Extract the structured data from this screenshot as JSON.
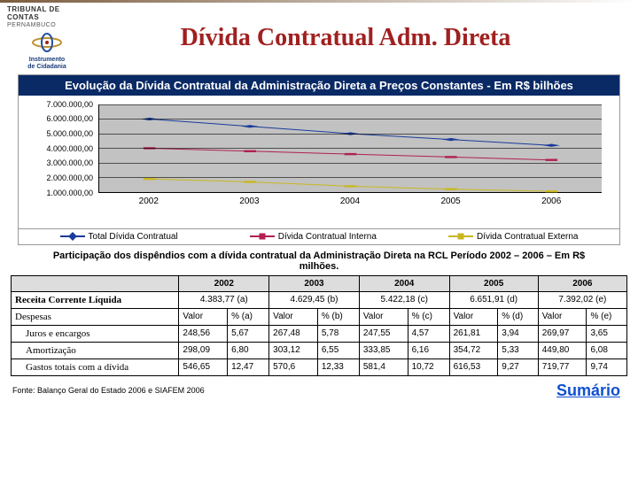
{
  "header": {
    "org_line1": "TRIBUNAL DE CONTAS",
    "org_line2": "PERNAMBUCO",
    "tagline1": "Instrumento",
    "tagline2": "de Cidadania",
    "title": "Dívida Contratual Adm. Direta"
  },
  "chart": {
    "type": "line",
    "title": "Evolução da Dívida Contratual da Administração Direta a Preços Constantes - Em R$ bilhões",
    "background_color": "#c2c2c2",
    "title_bg": "#0a2a66",
    "title_color": "#ffffff",
    "x_categories": [
      "2002",
      "2003",
      "2004",
      "2005",
      "2006"
    ],
    "y_ticks": [
      "1.000.000,00",
      "2.000.000,00",
      "3.000.000,00",
      "4.000.000,00",
      "5.000.000,00",
      "6.000.000,00",
      "7.000.000,00"
    ],
    "ylim": [
      1000000,
      7000000
    ],
    "series": [
      {
        "name": "Total Dívida Contratual",
        "color": "#1a3c9a",
        "marker": "diamond",
        "marker_color": "#1a3c9a",
        "values": [
          6000000,
          5500000,
          5000000,
          4600000,
          4200000
        ]
      },
      {
        "name": "Dívida Contratual Interna",
        "color": "#b02050",
        "marker": "square",
        "marker_color": "#b02050",
        "values": [
          4000000,
          3800000,
          3600000,
          3400000,
          3200000
        ]
      },
      {
        "name": "Dívida Contratual Externa",
        "color": "#c8b820",
        "marker": "triangle",
        "marker_color": "#c8b820",
        "values": [
          1900000,
          1700000,
          1400000,
          1200000,
          1050000
        ]
      }
    ]
  },
  "subtitle": "Participação dos dispêndios com a dívida contratual da Administração Direta na RCL Período 2002 – 2006 – Em R$ milhões.",
  "table": {
    "years": [
      "2002",
      "2003",
      "2004",
      "2005",
      "2006"
    ],
    "rcl_label": "Receita Corrente Líquida",
    "rcl_values": [
      "4.383,77 (a)",
      "4.629,45 (b)",
      "5.422,18 (c)",
      "6.651,91 (d)",
      "7.392,02 (e)"
    ],
    "despesas_label": "Despesas",
    "despesas_cols": [
      [
        "Valor",
        "% (a)"
      ],
      [
        "Valor",
        "% (b)"
      ],
      [
        "Valor",
        "% (c)"
      ],
      [
        "Valor",
        "% (d)"
      ],
      [
        "Valor",
        "% (e)"
      ]
    ],
    "rows": [
      {
        "label": "Juros e encargos",
        "cells": [
          "248,56",
          "5,67",
          "267,48",
          "5,78",
          "247,55",
          "4,57",
          "261,81",
          "3,94",
          "269,97",
          "3,65"
        ]
      },
      {
        "label": "Amortização",
        "cells": [
          "298,09",
          "6,80",
          "303,12",
          "6,55",
          "333,85",
          "6,16",
          "354,72",
          "5,33",
          "449,80",
          "6,08"
        ]
      },
      {
        "label": "Gastos totais com a dívida",
        "cells": [
          "546,65",
          "12,47",
          "570,6",
          "12,33",
          "581,4",
          "10,72",
          "616,53",
          "9,27",
          "719,77",
          "9,74"
        ]
      }
    ]
  },
  "footer": {
    "source": "Fonte: Balanço Geral do Estado 2006 e SIAFEM 2006",
    "link": "Sumário"
  }
}
